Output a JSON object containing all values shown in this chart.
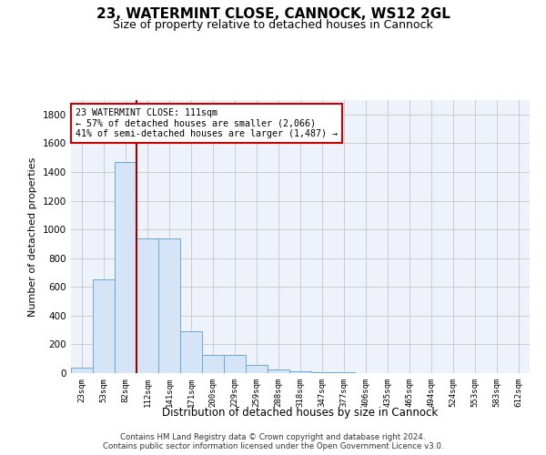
{
  "title_line1": "23, WATERMINT CLOSE, CANNOCK, WS12 2GL",
  "title_line2": "Size of property relative to detached houses in Cannock",
  "xlabel": "Distribution of detached houses by size in Cannock",
  "ylabel": "Number of detached properties",
  "bar_labels": [
    "23sqm",
    "53sqm",
    "82sqm",
    "112sqm",
    "141sqm",
    "171sqm",
    "200sqm",
    "229sqm",
    "259sqm",
    "288sqm",
    "318sqm",
    "347sqm",
    "377sqm",
    "406sqm",
    "435sqm",
    "465sqm",
    "494sqm",
    "524sqm",
    "553sqm",
    "583sqm",
    "612sqm"
  ],
  "bar_values": [
    40,
    650,
    1470,
    935,
    935,
    290,
    125,
    125,
    60,
    25,
    15,
    5,
    5,
    0,
    0,
    0,
    0,
    0,
    0,
    0,
    0
  ],
  "bar_color": "#d6e4f7",
  "bar_edge_color": "#6aaad4",
  "marker_line_color": "#990000",
  "annotation_text_line1": "23 WATERMINT CLOSE: 111sqm",
  "annotation_text_line2": "← 57% of detached houses are smaller (2,066)",
  "annotation_text_line3": "41% of semi-detached houses are larger (1,487) →",
  "annotation_box_edgecolor": "#cc0000",
  "ylim": [
    0,
    1900
  ],
  "yticks": [
    0,
    200,
    400,
    600,
    800,
    1000,
    1200,
    1400,
    1600,
    1800
  ],
  "grid_color": "#cccccc",
  "bg_color": "#edf2fb",
  "footer_line1": "Contains HM Land Registry data © Crown copyright and database right 2024.",
  "footer_line2": "Contains public sector information licensed under the Open Government Licence v3.0."
}
